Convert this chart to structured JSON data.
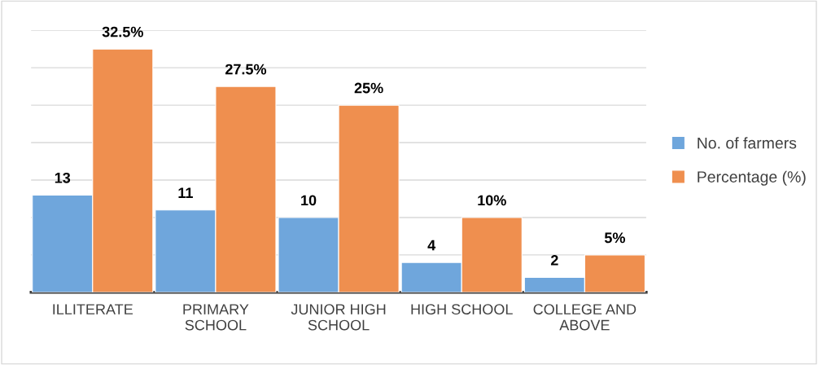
{
  "chart_data": {
    "type": "bar",
    "categories": [
      "ILLITERATE",
      "PRIMARY\nSCHOOL",
      "JUNIOR HIGH\nSCHOOL",
      "HIGH SCHOOL",
      "COLLEGE AND\nABOVE"
    ],
    "series": [
      {
        "name": "No. of farmers",
        "color": "#6fa6dc",
        "values": [
          13,
          11,
          10,
          4,
          2
        ],
        "value_labels": [
          "13",
          "11",
          "10",
          "4",
          "2"
        ]
      },
      {
        "name": "Percentage (%)",
        "color": "#ef8f4f",
        "values": [
          32.5,
          27.5,
          25,
          10,
          5
        ],
        "value_labels": [
          "32.5%",
          "27.5%",
          "25%",
          "10%",
          "5%"
        ]
      }
    ],
    "ylim": [
      0,
      35
    ],
    "yticks": [
      {
        "value": 0,
        "label": null
      },
      {
        "value": 5,
        "label": null
      },
      {
        "value": 10,
        "label": null
      },
      {
        "value": 15,
        "label": null
      },
      {
        "value": 20,
        "label": null
      },
      {
        "value": 25,
        "label": null
      },
      {
        "value": 30,
        "label": null
      },
      {
        "value": 35,
        "label": null
      }
    ],
    "tick_labels": "x",
    "grid": "y",
    "legend": "right"
  }
}
